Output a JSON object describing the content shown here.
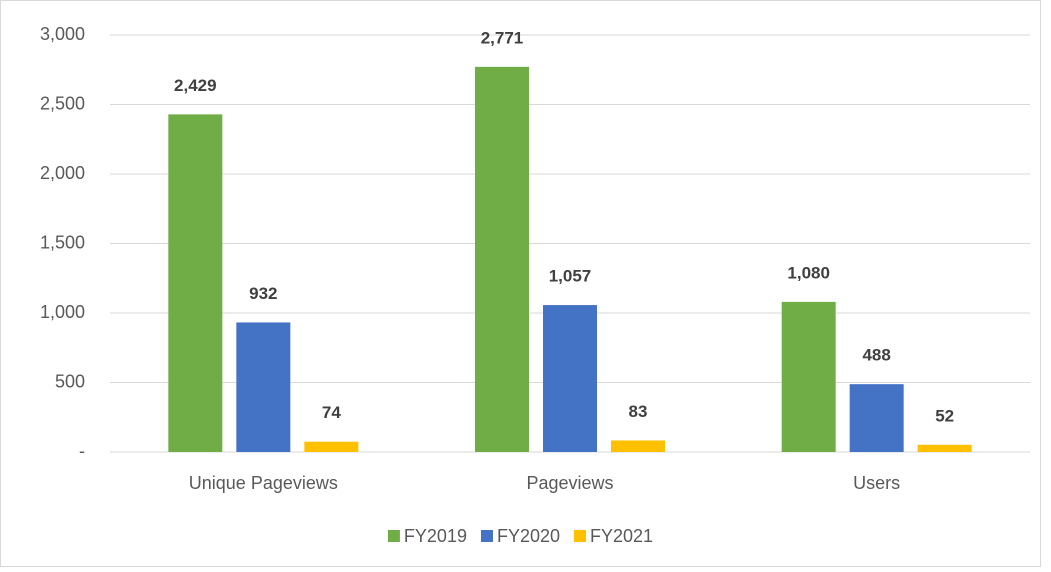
{
  "chart_data": {
    "type": "bar",
    "categories": [
      "Unique Pageviews",
      "Pageviews",
      "Users"
    ],
    "series": [
      {
        "name": "FY2019",
        "color": "#70ad47",
        "values": [
          2429,
          2771,
          1080
        ],
        "value_labels": [
          "2,429",
          "2,771",
          "1,080"
        ]
      },
      {
        "name": "FY2020",
        "color": "#4472c4",
        "values": [
          932,
          1057,
          488
        ],
        "value_labels": [
          "932",
          "1,057",
          "488"
        ]
      },
      {
        "name": "FY2021",
        "color": "#ffc000",
        "values": [
          74,
          83,
          52
        ]
      }
    ],
    "ylim": [
      0,
      3000
    ],
    "yticks": [
      {
        "value": 0,
        "label": "-"
      },
      500,
      {
        "value": 1000,
        "label": "1,000"
      },
      {
        "value": 1500,
        "label": "1,500"
      },
      {
        "value": 2000,
        "label": "2,000"
      },
      {
        "value": 2500,
        "label": "2,500"
      },
      {
        "value": 3000,
        "label": "3,000"
      }
    ],
    "grid": true,
    "legend": "bottom"
  }
}
